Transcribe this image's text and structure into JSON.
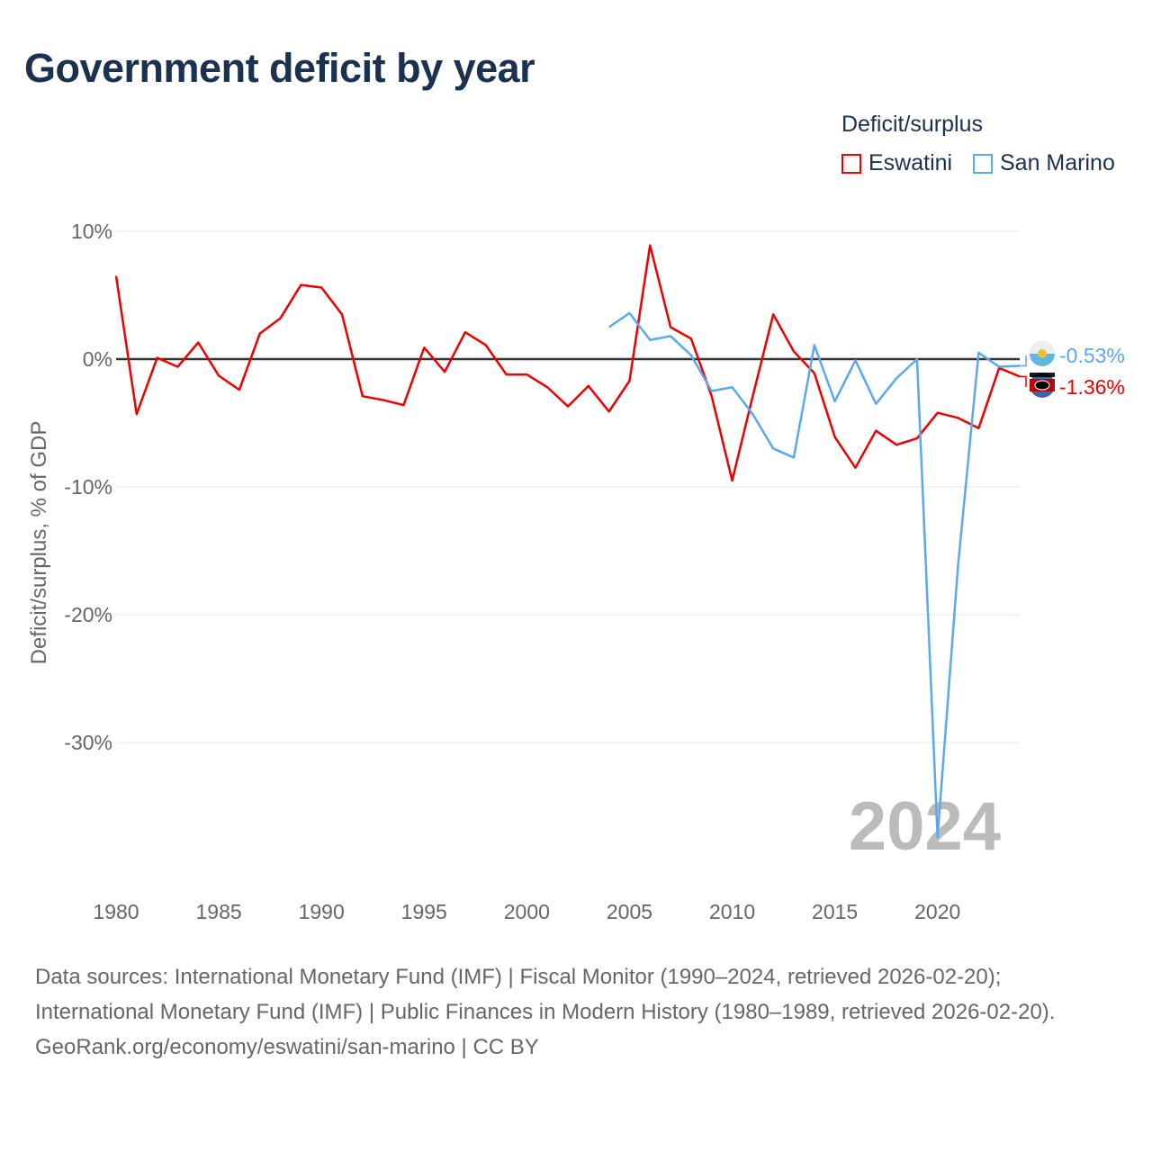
{
  "title": "Government deficit by year",
  "source_lines": [
    "Data sources: International Monetary Fund (IMF) | Fiscal Monitor (1990–2024, retrieved 2026-02-20); International Monetary Fund (IMF) | Public Finances in Modern History (1980–1989, retrieved 2026-02-20).",
    "GeoRank.org/economy/eswatini/san-marino | CC BY"
  ],
  "chart_data": {
    "type": "line",
    "title": "Government deficit by year",
    "ylabel": "Deficit/surplus, % of GDP",
    "xlabel": "",
    "legend_title": "Deficit/surplus",
    "legend_position": "top-right",
    "year_watermark": "2024",
    "xlim": [
      1980,
      2024
    ],
    "ylim": [
      -39.5,
      10
    ],
    "xticks": [
      1980,
      1985,
      1990,
      1995,
      2000,
      2005,
      2010,
      2015,
      2020
    ],
    "yticks": [
      {
        "v": 10,
        "label": "10%"
      },
      {
        "v": 0,
        "label": "0%"
      },
      {
        "v": -10,
        "label": "-10%"
      },
      {
        "v": -20,
        "label": "-20%"
      },
      {
        "v": -30,
        "label": "-30%"
      }
    ],
    "grid": true,
    "series": [
      {
        "name": "Eswatini",
        "color": "#ee0000",
        "end_label": "-1.36%",
        "start_year": 1980,
        "values": [
          6.5,
          -4.3,
          0.1,
          -0.6,
          1.3,
          -1.3,
          -2.4,
          2.0,
          3.2,
          5.8,
          5.6,
          3.5,
          -2.9,
          -3.2,
          -3.6,
          0.9,
          -1.0,
          2.1,
          1.1,
          -1.2,
          -1.2,
          -2.2,
          -3.7,
          -2.1,
          -4.1,
          -1.7,
          8.9,
          2.5,
          1.6,
          -2.9,
          -9.5,
          -2.9,
          3.5,
          0.6,
          -1.1,
          -6.1,
          -8.5,
          -5.6,
          -6.7,
          -6.2,
          -4.2,
          -4.6,
          -5.4,
          -0.7,
          -1.36
        ]
      },
      {
        "name": "San Marino",
        "color": "#5ba8ee",
        "end_label": "-0.53%",
        "start_year": 2004,
        "values": [
          2.5,
          3.6,
          1.5,
          1.8,
          0.3,
          -2.5,
          -2.2,
          -4.3,
          -7.0,
          -7.7,
          1.1,
          -3.3,
          -0.1,
          -3.5,
          -1.5,
          0.0,
          -37.4,
          -16.1,
          0.5,
          -0.6,
          -0.53
        ]
      }
    ]
  }
}
